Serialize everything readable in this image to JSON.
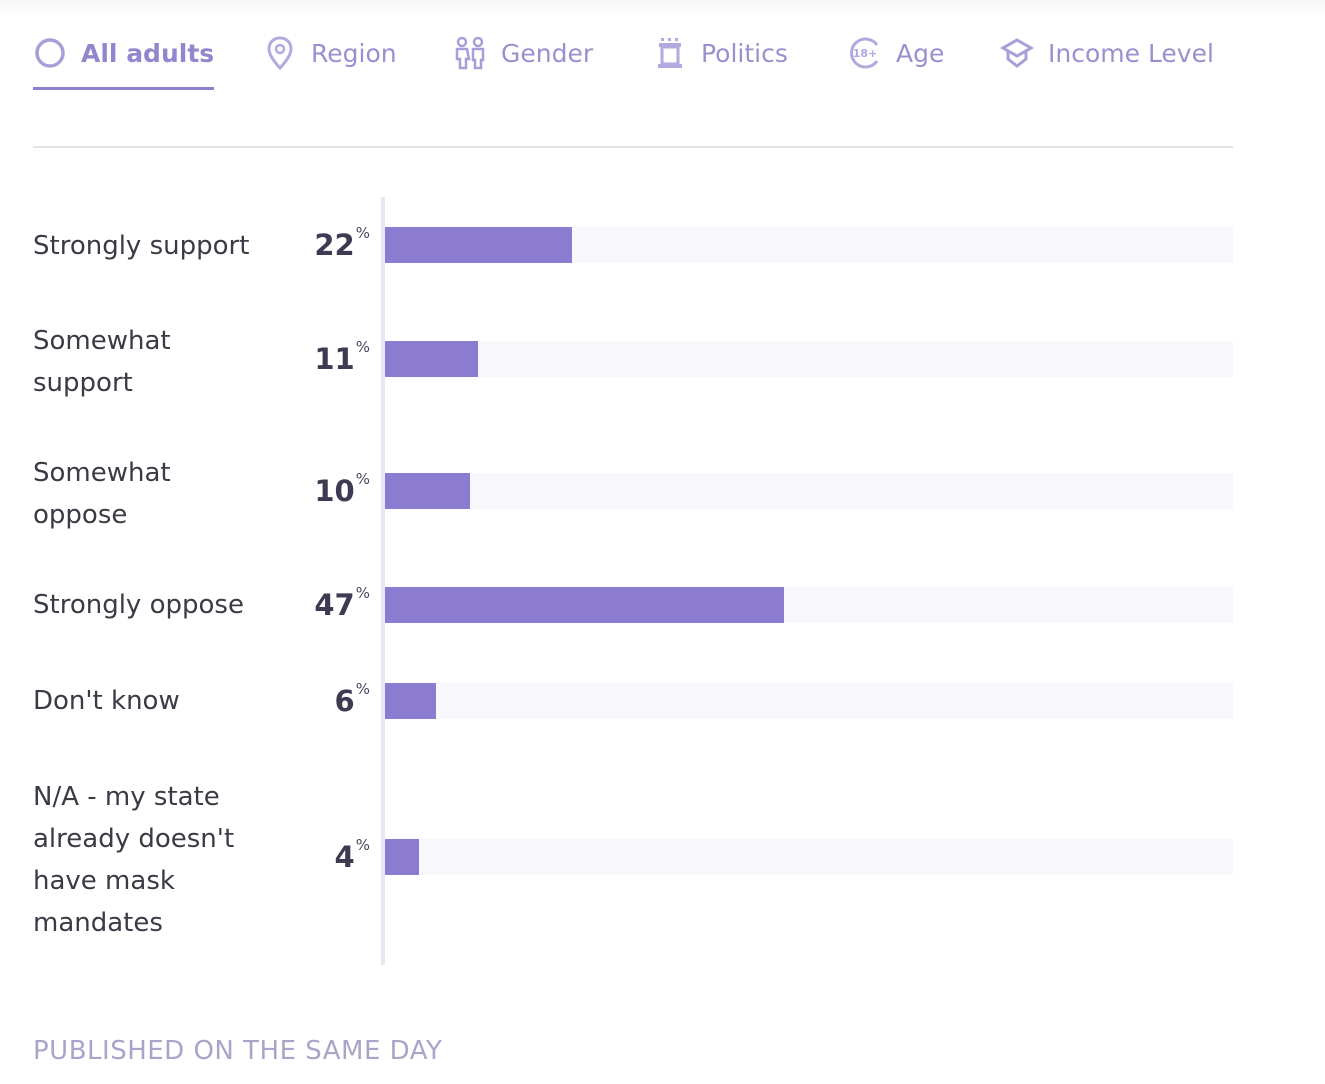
{
  "tabs": [
    {
      "label": "All adults",
      "icon": "circle-icon",
      "active": true
    },
    {
      "label": "Region",
      "icon": "map-pin-icon",
      "active": false
    },
    {
      "label": "Gender",
      "icon": "gender-icon",
      "active": false
    },
    {
      "label": "Politics",
      "icon": "podium-icon",
      "active": false
    },
    {
      "label": "Age",
      "icon": "age-18-plus-icon",
      "active": false
    },
    {
      "label": "Income Level",
      "icon": "graduation-cap-icon",
      "active": false
    }
  ],
  "colors": {
    "accent": "#8b7cd1",
    "track": "#f8f7fb",
    "tab_text": "#9b8fd0",
    "value_text": "#3d3a52"
  },
  "chart_data": {
    "type": "bar",
    "orientation": "horizontal",
    "title": "",
    "xlabel": "",
    "ylabel": "",
    "xlim": [
      0,
      100
    ],
    "unit": "%",
    "grid": false,
    "categories": [
      "Strongly support",
      "Somewhat support",
      "Somewhat oppose",
      "Strongly oppose",
      "Don't know",
      "N/A - my state already doesn't have mask mandates"
    ],
    "values": [
      22,
      11,
      10,
      47,
      6,
      4
    ],
    "value_labels": [
      "22",
      "11",
      "10",
      "47",
      "6",
      "4"
    ],
    "percent_symbol": "%"
  },
  "footer": {
    "label": "PUBLISHED ON THE SAME DAY"
  }
}
